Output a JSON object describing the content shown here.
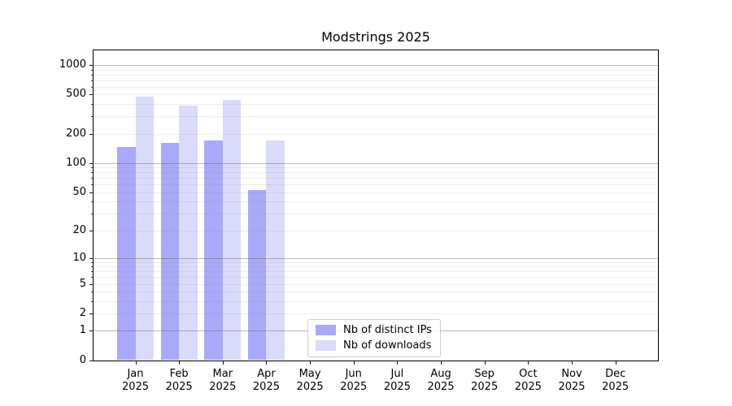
{
  "figure": {
    "background": "#ffffff"
  },
  "chart_data": {
    "type": "bar",
    "title": "Modstrings 2025",
    "categories": [
      "Jan",
      "Feb",
      "Mar",
      "Apr",
      "May",
      "Jun",
      "Jul",
      "Aug",
      "Sep",
      "Oct",
      "Nov",
      "Dec"
    ],
    "x_year_label": "2025",
    "series": [
      {
        "name": "Nb of distinct IPs",
        "color": "#a9a9f9",
        "values": [
          147,
          162,
          170,
          53,
          0,
          0,
          0,
          0,
          0,
          0,
          0,
          0
        ]
      },
      {
        "name": "Nb of downloads",
        "color": "#dadafb",
        "values": [
          479,
          387,
          440,
          169,
          0,
          0,
          0,
          0,
          0,
          0,
          0,
          0
        ]
      }
    ],
    "yscale": "log(1+v)",
    "yticks": [
      0,
      1,
      2,
      5,
      10,
      20,
      50,
      100,
      200,
      500,
      1000
    ],
    "ylim": [
      0,
      1435
    ],
    "grid": "horizontal",
    "legend_position": "lower center inside"
  }
}
